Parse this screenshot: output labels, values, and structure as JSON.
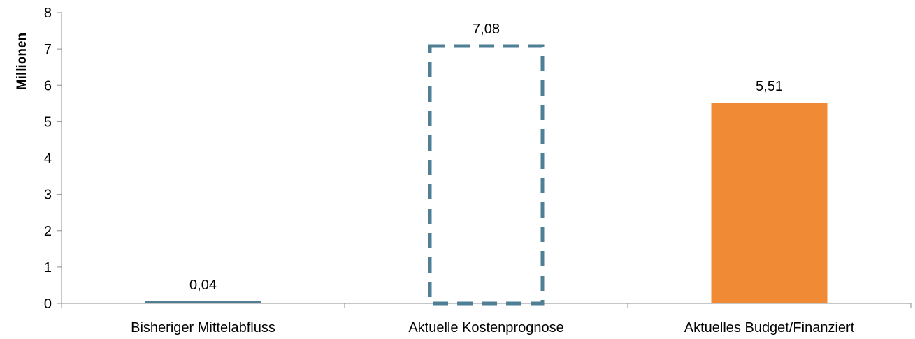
{
  "chart_data": {
    "type": "bar",
    "ylabel": "Millionen",
    "xlabel": "",
    "ylim": [
      0,
      8
    ],
    "yticks": [
      "0",
      "1",
      "2",
      "3",
      "4",
      "5",
      "6",
      "7",
      "8"
    ],
    "grid": false,
    "categories": [
      "Bisheriger Mittelabfluss",
      "Aktuelle Kostenprognose",
      "Aktuelles Budget/Finanziert"
    ],
    "values": [
      0.04,
      7.08,
      5.51
    ],
    "value_labels": [
      "0,04",
      "7,08",
      "5,51"
    ],
    "bar_styles": [
      "solid",
      "dashed-outline",
      "solid"
    ],
    "colors": [
      "#4e7f95",
      "#4e7f95",
      "#f08a34"
    ]
  }
}
